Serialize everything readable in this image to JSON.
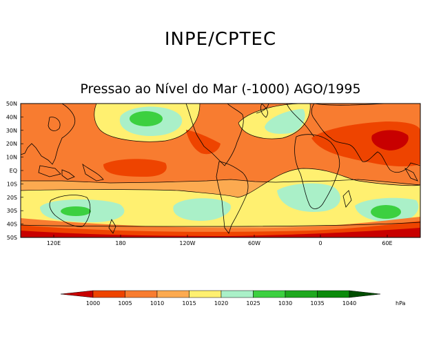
{
  "header": {
    "org": "INPE/CPTEC",
    "subtitle": "Pressao ao Nível do Mar (-1000) AGO/1995"
  },
  "axes": {
    "lat_labels": [
      "50N",
      "40N",
      "30N",
      "20N",
      "10N",
      "EQ",
      "10S",
      "20S",
      "30S",
      "40S",
      "50S"
    ],
    "lon_labels": [
      "120E",
      "180",
      "120W",
      "60W",
      "0",
      "60E"
    ]
  },
  "legend": {
    "values": [
      "1000",
      "1005",
      "1010",
      "1015",
      "1020",
      "1025",
      "1030",
      "1035",
      "1040"
    ],
    "unit": "hPa",
    "colors": [
      "#c80000",
      "#ee4400",
      "#f87c30",
      "#fcaa50",
      "#fff070",
      "#aaf0c8",
      "#3cd040",
      "#1ea81e",
      "#0a8a0a",
      "#004d00"
    ]
  },
  "palette": {
    "p1000": "#c80000",
    "p1005": "#ee4400",
    "p1010": "#f87c30",
    "p1015": "#fcaa50",
    "p1020": "#fff070",
    "p1025": "#aaf0c8",
    "p1030": "#3cd040"
  }
}
